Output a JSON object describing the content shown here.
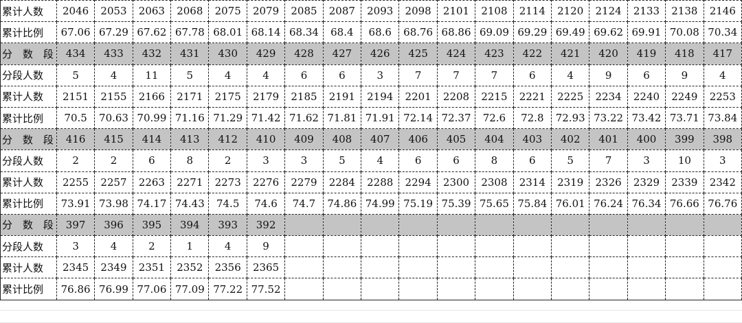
{
  "table": {
    "rows": [
      {
        "label": "累计人数",
        "band": false,
        "cells": [
          "2046",
          "2053",
          "2063",
          "2068",
          "2075",
          "2079",
          "2085",
          "2087",
          "2093",
          "2098",
          "2101",
          "2108",
          "2114",
          "2120",
          "2124",
          "2133",
          "2138",
          "2146"
        ]
      },
      {
        "label": "累计比例",
        "band": false,
        "cells": [
          "67.06",
          "67.29",
          "67.62",
          "67.78",
          "68.01",
          "68.14",
          "68.34",
          "68.4",
          "68.6",
          "68.76",
          "68.86",
          "69.09",
          "69.29",
          "69.49",
          "69.62",
          "69.91",
          "70.08",
          "70.34"
        ]
      },
      {
        "label": "分 数 段",
        "band": true,
        "cells": [
          "434",
          "433",
          "432",
          "431",
          "430",
          "429",
          "428",
          "427",
          "426",
          "425",
          "424",
          "423",
          "422",
          "421",
          "420",
          "419",
          "418",
          "417"
        ]
      },
      {
        "label": "分段人数",
        "band": false,
        "cells": [
          "5",
          "4",
          "11",
          "5",
          "4",
          "4",
          "6",
          "6",
          "3",
          "7",
          "7",
          "7",
          "6",
          "4",
          "9",
          "6",
          "9",
          "4"
        ]
      },
      {
        "label": "累计人数",
        "band": false,
        "cells": [
          "2151",
          "2155",
          "2166",
          "2171",
          "2175",
          "2179",
          "2185",
          "2191",
          "2194",
          "2201",
          "2208",
          "2215",
          "2221",
          "2225",
          "2234",
          "2240",
          "2249",
          "2253"
        ]
      },
      {
        "label": "累计比例",
        "band": false,
        "cells": [
          "70.5",
          "70.63",
          "70.99",
          "71.16",
          "71.29",
          "71.42",
          "71.62",
          "71.81",
          "71.91",
          "72.14",
          "72.37",
          "72.6",
          "72.8",
          "72.93",
          "73.22",
          "73.42",
          "73.71",
          "73.84"
        ]
      },
      {
        "label": "分 数 段",
        "band": true,
        "cells": [
          "416",
          "415",
          "414",
          "413",
          "412",
          "410",
          "409",
          "408",
          "407",
          "406",
          "405",
          "404",
          "403",
          "402",
          "401",
          "400",
          "399",
          "398"
        ]
      },
      {
        "label": "分段人数",
        "band": false,
        "cells": [
          "2",
          "2",
          "6",
          "8",
          "2",
          "3",
          "3",
          "5",
          "4",
          "6",
          "6",
          "8",
          "6",
          "5",
          "7",
          "3",
          "10",
          "3"
        ]
      },
      {
        "label": "累计人数",
        "band": false,
        "cells": [
          "2255",
          "2257",
          "2263",
          "2271",
          "2273",
          "2276",
          "2279",
          "2284",
          "2288",
          "2294",
          "2300",
          "2308",
          "2314",
          "2319",
          "2326",
          "2329",
          "2339",
          "2342"
        ]
      },
      {
        "label": "累计比例",
        "band": false,
        "cells": [
          "73.91",
          "73.98",
          "74.17",
          "74.43",
          "74.5",
          "74.6",
          "74.7",
          "74.86",
          "74.99",
          "75.19",
          "75.39",
          "75.65",
          "75.84",
          "76.01",
          "76.24",
          "76.34",
          "76.66",
          "76.76"
        ]
      },
      {
        "label": "分 数 段",
        "band": true,
        "cells": [
          "397",
          "396",
          "395",
          "394",
          "393",
          "392",
          "",
          "",
          "",
          "",
          "",
          "",
          "",
          "",
          "",
          "",
          "",
          ""
        ]
      },
      {
        "label": "分段人数",
        "band": false,
        "cells": [
          "3",
          "4",
          "2",
          "1",
          "4",
          "9",
          "",
          "",
          "",
          "",
          "",
          "",
          "",
          "",
          "",
          "",
          "",
          ""
        ]
      },
      {
        "label": "累计人数",
        "band": false,
        "cells": [
          "2345",
          "2349",
          "2351",
          "2352",
          "2356",
          "2365",
          "",
          "",
          "",
          "",
          "",
          "",
          "",
          "",
          "",
          "",
          "",
          ""
        ]
      },
      {
        "label": "累计比例",
        "band": false,
        "cells": [
          "76.86",
          "76.99",
          "77.06",
          "77.09",
          "77.22",
          "77.52",
          "",
          "",
          "",
          "",
          "",
          "",
          "",
          "",
          "",
          "",
          "",
          ""
        ]
      }
    ]
  }
}
